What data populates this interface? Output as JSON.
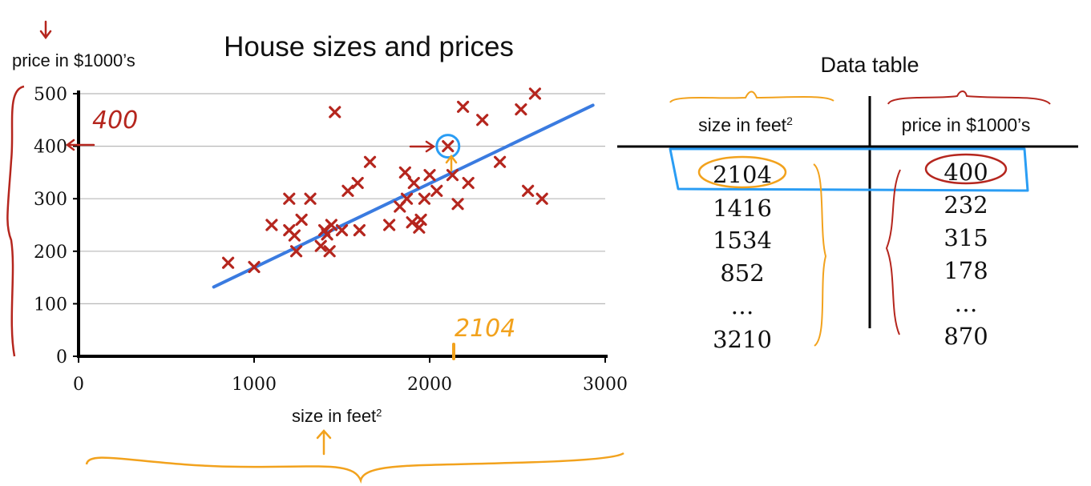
{
  "chart_data": {
    "type": "scatter",
    "title": "House sizes and prices",
    "ylabel": "price in $1000’s",
    "xlabel": "size in feet",
    "xlabel_sup": "2",
    "xlim": [
      0,
      3000
    ],
    "ylim": [
      0,
      500
    ],
    "x_ticks": [
      0,
      1000,
      2000,
      3000
    ],
    "y_ticks": [
      0,
      100,
      200,
      300,
      400,
      500
    ],
    "grid": true,
    "points": [
      [
        852,
        178
      ],
      [
        1000,
        170
      ],
      [
        1100,
        250
      ],
      [
        1200,
        300
      ],
      [
        1200,
        240
      ],
      [
        1230,
        230
      ],
      [
        1240,
        200
      ],
      [
        1270,
        260
      ],
      [
        1320,
        300
      ],
      [
        1380,
        210
      ],
      [
        1400,
        240
      ],
      [
        1416,
        232
      ],
      [
        1430,
        200
      ],
      [
        1440,
        250
      ],
      [
        1460,
        465
      ],
      [
        1500,
        240
      ],
      [
        1534,
        315
      ],
      [
        1590,
        330
      ],
      [
        1600,
        240
      ],
      [
        1660,
        370
      ],
      [
        1770,
        250
      ],
      [
        1830,
        285
      ],
      [
        1860,
        350
      ],
      [
        1870,
        300
      ],
      [
        1900,
        255
      ],
      [
        1910,
        330
      ],
      [
        1940,
        245
      ],
      [
        1950,
        260
      ],
      [
        1970,
        300
      ],
      [
        2000,
        345
      ],
      [
        2040,
        315
      ],
      [
        2104,
        400
      ],
      [
        2130,
        345
      ],
      [
        2160,
        290
      ],
      [
        2190,
        475
      ],
      [
        2220,
        330
      ],
      [
        2300,
        450
      ],
      [
        2400,
        370
      ],
      [
        2520,
        470
      ],
      [
        2560,
        315
      ],
      [
        2600,
        500
      ],
      [
        2640,
        300
      ]
    ],
    "fit_line": {
      "x": [
        770,
        2930
      ],
      "y": [
        132,
        478
      ]
    },
    "highlight_point": [
      2104,
      400
    ],
    "annotations": {
      "y_value": "400",
      "x_value": "2104"
    },
    "colors": {
      "marker": "#b5261e",
      "fit_line": "#3a7be0",
      "highlight": "#2a9df4",
      "annotation_red": "#b5261e",
      "annotation_orange": "#f2a21d"
    }
  },
  "table": {
    "title": "Data table",
    "col1_header": "size in feet",
    "col1_header_sup": "2",
    "col2_header": "price in $1000’s",
    "rows": [
      {
        "size": "2104",
        "price": "400"
      },
      {
        "size": "1416",
        "price": "232"
      },
      {
        "size": "1534",
        "price": "315"
      },
      {
        "size": "852",
        "price": "178"
      },
      {
        "size": "…",
        "price": "…"
      },
      {
        "size": "3210",
        "price": "870"
      }
    ]
  }
}
